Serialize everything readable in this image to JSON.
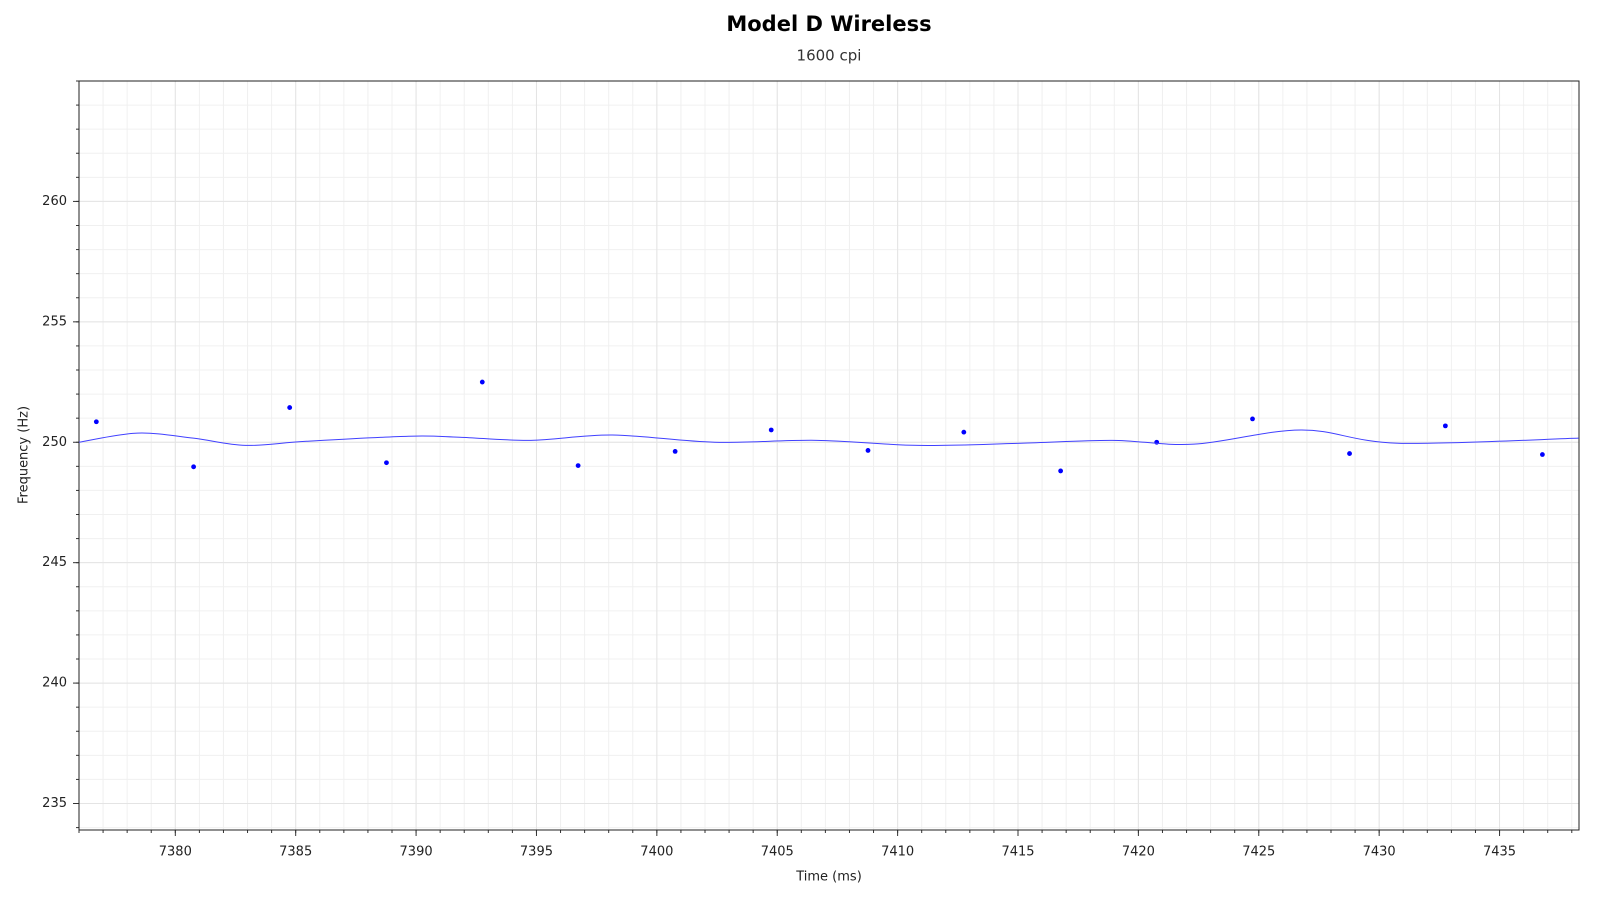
{
  "chart_data": {
    "type": "scatter",
    "title": "Model D Wireless",
    "subtitle": "1600 cpi",
    "x_label": "Time (ms)",
    "y_label": "Frequency (Hz)",
    "xlim": [
      7376,
      7438.3
    ],
    "xticks": [
      7380,
      7385,
      7390,
      7395,
      7400,
      7405,
      7410,
      7415,
      7420,
      7425,
      7430,
      7435
    ],
    "ylim": [
      233.9,
      265
    ],
    "yticks": [
      235,
      240,
      245,
      250,
      255,
      260
    ],
    "grid": true,
    "minor_grid": true,
    "series": [
      {
        "type": "scatter",
        "color": "#0000ff",
        "x": [
          7376.72,
          7380.76,
          7384.75,
          7388.77,
          7392.75,
          7396.73,
          7400.76,
          7404.75,
          7408.77,
          7412.75,
          7416.77,
          7420.76,
          7424.74,
          7428.77,
          7432.75,
          7436.78
        ],
        "values": [
          250.85,
          248.98,
          251.44,
          249.15,
          252.5,
          249.03,
          249.62,
          250.51,
          249.66,
          250.42,
          248.81,
          250.0,
          250.97,
          249.53,
          250.68,
          249.49
        ]
      },
      {
        "type": "line",
        "color": "#4040ff",
        "x": [
          7376,
          7378.42,
          7380.75,
          7382.91,
          7385.45,
          7389.69,
          7391.81,
          7394.77,
          7398.16,
          7402.4,
          7406.64,
          7410.87,
          7415.11,
          7418.92,
          7422.31,
          7426.76,
          7430.79,
          7438.29
        ],
        "values": [
          250.0,
          250.38,
          250.17,
          249.87,
          250.04,
          250.25,
          250.21,
          250.08,
          250.3,
          250.0,
          250.08,
          249.87,
          249.96,
          250.08,
          249.92,
          250.51,
          249.96,
          250.17
        ]
      }
    ]
  }
}
